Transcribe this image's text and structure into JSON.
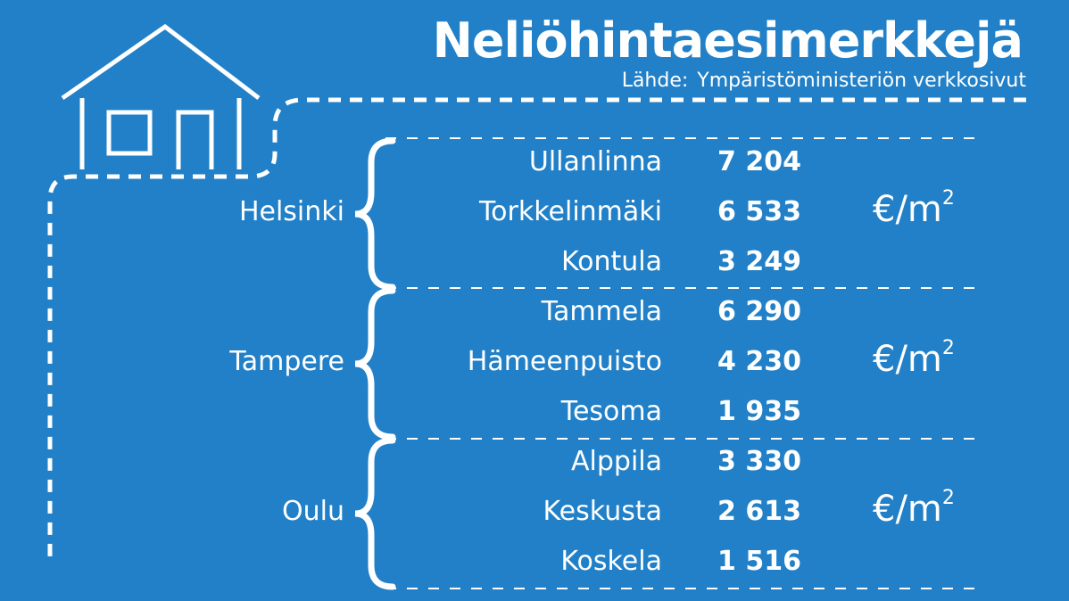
{
  "title": "Neliöhintaesimerkkejä",
  "source": {
    "label": "Lähde:",
    "text": "Ympäristöministeriön verkkosivut"
  },
  "unit": {
    "base": "€/m",
    "exp": "2"
  },
  "groups": [
    {
      "city": "Helsinki",
      "rows": [
        {
          "district": "Ullanlinna",
          "price": "7 204"
        },
        {
          "district": "Torkkelinmäki",
          "price": "6 533"
        },
        {
          "district": "Kontula",
          "price": "3 249"
        }
      ]
    },
    {
      "city": "Tampere",
      "rows": [
        {
          "district": "Tammela",
          "price": "6 290"
        },
        {
          "district": "Hämeenpuisto",
          "price": "4 230"
        },
        {
          "district": "Tesoma",
          "price": "1 935"
        }
      ]
    },
    {
      "city": "Oulu",
      "rows": [
        {
          "district": "Alppila",
          "price": "3 330"
        },
        {
          "district": "Keskusta",
          "price": "2 613"
        },
        {
          "district": "Koskela",
          "price": "1 516"
        }
      ]
    }
  ],
  "icons": {
    "house": "house-icon",
    "brace": "curly-brace-icon"
  }
}
